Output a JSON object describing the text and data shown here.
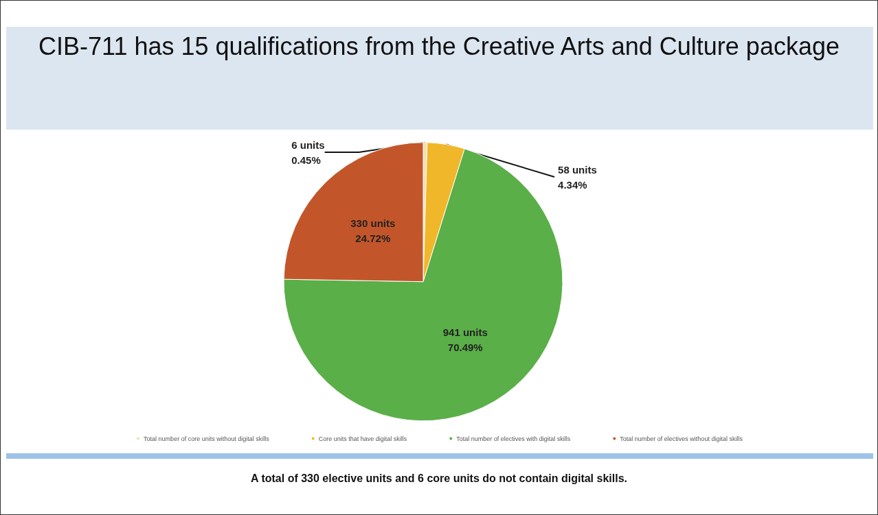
{
  "chart_data": {
    "type": "pie",
    "title": "CIB-711 has 15 qualifications from the Creative Arts and Culture package",
    "categories": [
      "Total number of core units without digital skills",
      "Core units that have digital skills",
      "Total number of electives with digital skills",
      "Total number of electives without digital skills"
    ],
    "values": [
      6,
      58,
      941,
      330
    ],
    "colors": [
      "#f3dfae",
      "#f1b72a",
      "#5aaf48",
      "#c2562a"
    ],
    "value_labels": [
      "6 units\n0.45%",
      "58 units\n4.34%",
      "941 units\n70.49%",
      "330 units\n24.72%"
    ],
    "legend": "bottom",
    "annotations": [
      "A total of 330 elective units and 6 core units do not contain digital skills."
    ]
  }
}
